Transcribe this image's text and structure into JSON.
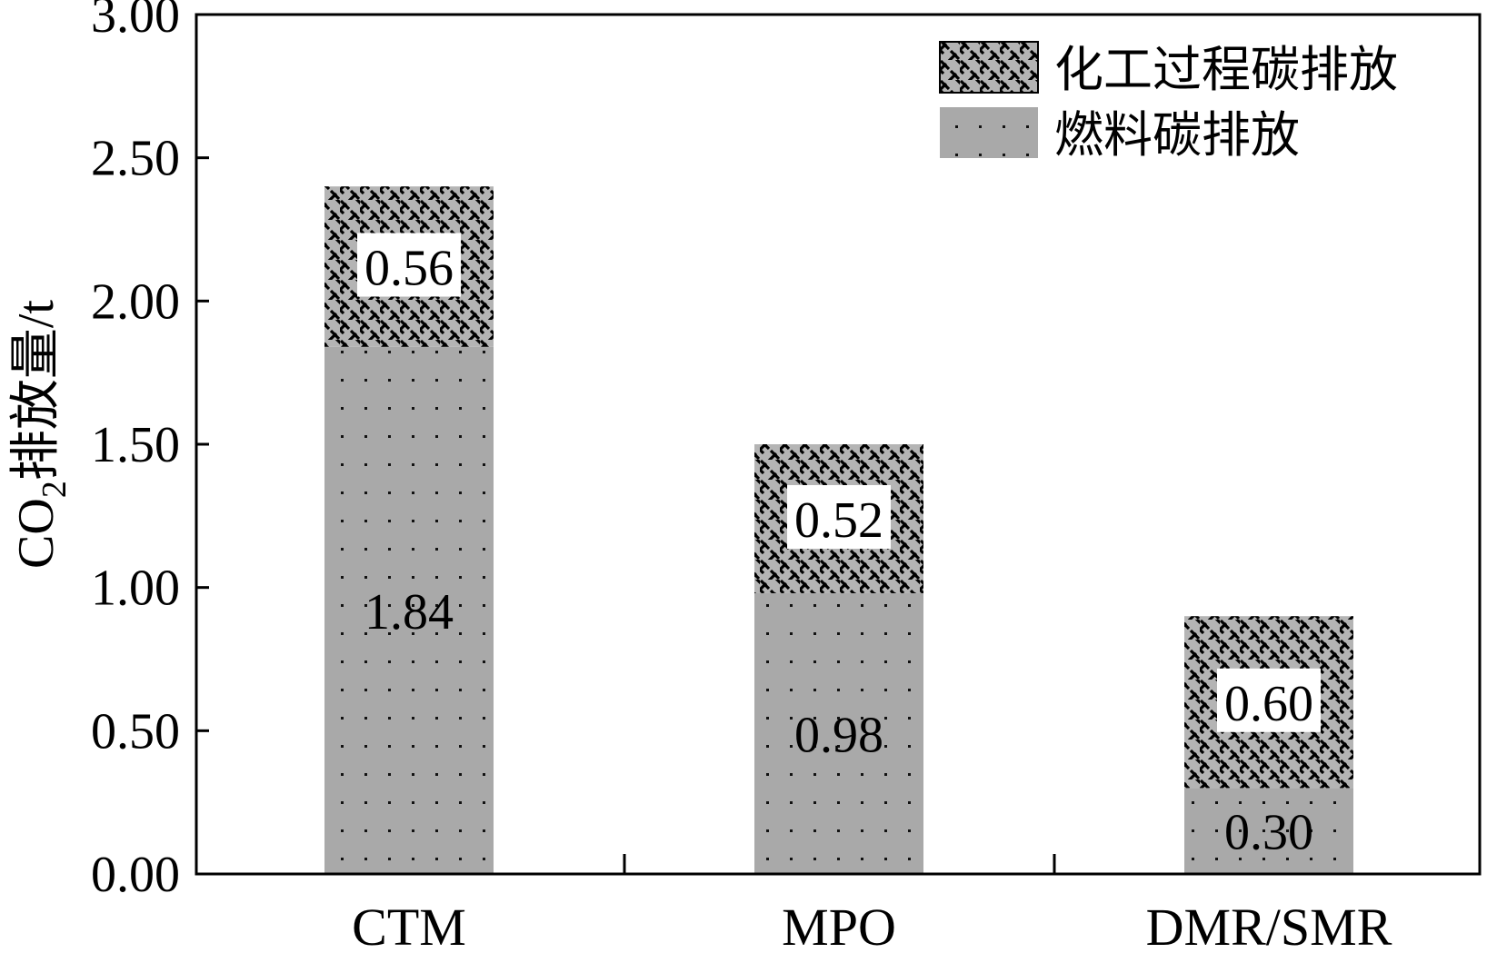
{
  "chart_data": {
    "type": "bar",
    "stacked": true,
    "categories": [
      "CTM",
      "MPO",
      "DMR/SMR"
    ],
    "series": [
      {
        "name": "燃料碳排放",
        "values": [
          1.84,
          0.98,
          0.3
        ],
        "labels": [
          "1.84",
          "0.98",
          "0.30"
        ],
        "color": "#a9a9a9",
        "pattern": "dots"
      },
      {
        "name": "化工过程碳排放",
        "values": [
          0.56,
          0.52,
          0.6
        ],
        "labels": [
          "0.56",
          "0.52",
          "0.60"
        ],
        "color": "#a9a9a9",
        "pattern": "brick-hatch"
      }
    ],
    "ylabel": {
      "prefix": "CO",
      "subscript": "2",
      "suffix": "排放量/t"
    },
    "xlabel": "",
    "ylim": [
      0,
      3.0
    ],
    "yticks": [
      "0.00",
      "0.50",
      "1.00",
      "1.50",
      "2.00",
      "2.50",
      "3.00"
    ],
    "legend": {
      "position": "top-right",
      "entries": [
        "化工过程碳排放",
        "燃料碳排放"
      ]
    },
    "grid": false
  }
}
